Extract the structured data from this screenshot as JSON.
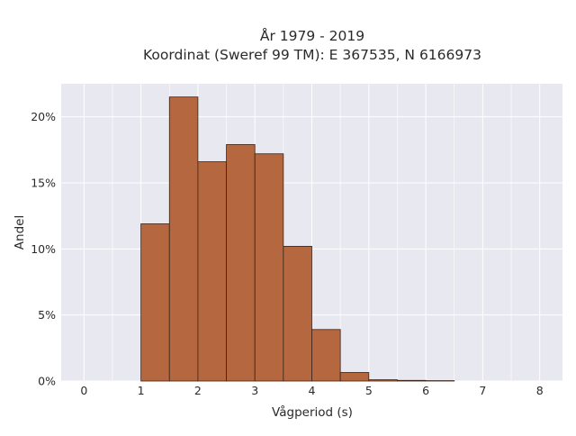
{
  "chart_data": {
    "type": "bar",
    "title_lines": [
      "År 1979 - 2019",
      "Koordinat (Sweref 99 TM): E 367535, N 6166973"
    ],
    "xlabel": "Vågperiod (s)",
    "ylabel": "Andel",
    "xlim": [
      -0.4,
      8.4
    ],
    "ylim": [
      0,
      22.5
    ],
    "x_ticks": [
      0,
      1,
      2,
      3,
      4,
      5,
      6,
      7,
      8
    ],
    "y_ticks": [
      0,
      5,
      10,
      15,
      20
    ],
    "y_tick_labels": [
      "0%",
      "5%",
      "10%",
      "15%",
      "20%"
    ],
    "bin_width": 0.5,
    "bins": [
      {
        "x0": 1.0,
        "x1": 1.5,
        "value": 11.9
      },
      {
        "x0": 1.5,
        "x1": 2.0,
        "value": 21.5
      },
      {
        "x0": 2.0,
        "x1": 2.5,
        "value": 16.6
      },
      {
        "x0": 2.5,
        "x1": 3.0,
        "value": 17.9
      },
      {
        "x0": 3.0,
        "x1": 3.5,
        "value": 17.2
      },
      {
        "x0": 3.5,
        "x1": 4.0,
        "value": 10.2
      },
      {
        "x0": 4.0,
        "x1": 4.5,
        "value": 3.9
      },
      {
        "x0": 4.5,
        "x1": 5.0,
        "value": 0.65
      },
      {
        "x0": 5.0,
        "x1": 5.5,
        "value": 0.1
      },
      {
        "x0": 5.5,
        "x1": 6.0,
        "value": 0.05
      },
      {
        "x0": 6.0,
        "x1": 6.5,
        "value": 0.03
      }
    ],
    "grid": true,
    "colors": {
      "bar_fill": "#b5683f",
      "bar_edge": "#3a2418",
      "plot_bg": "#e8e8f0",
      "grid": "#ffffff"
    }
  }
}
